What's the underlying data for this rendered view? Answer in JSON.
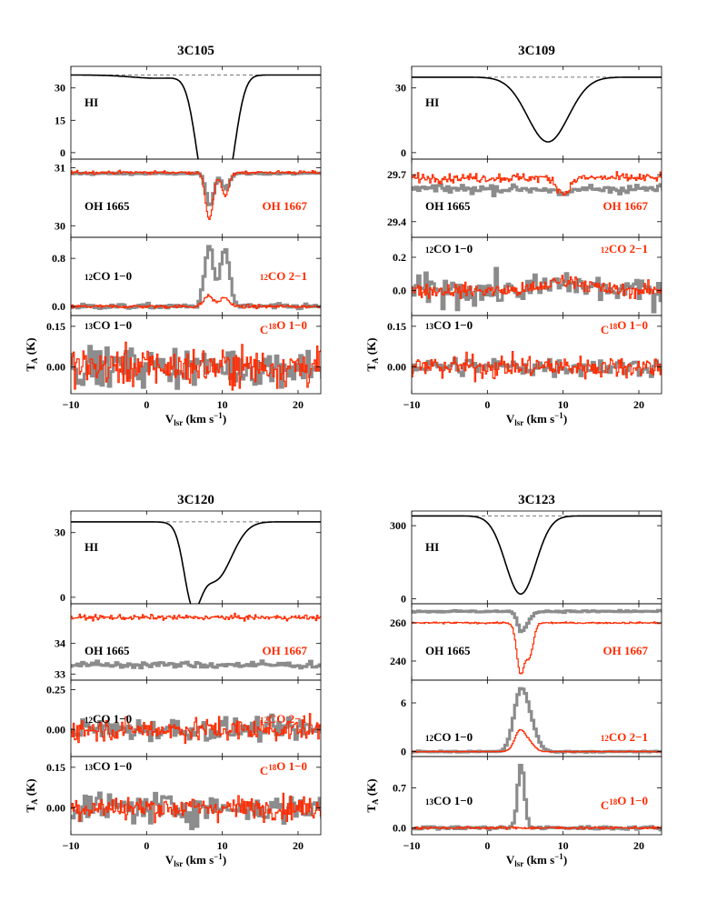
{
  "colors": {
    "black": "#000000",
    "gray": "#8c8c8c",
    "red": "#ff2a00",
    "dash": "#777777"
  },
  "labels": {
    "hi": "HI",
    "oh1665": "OH 1665",
    "oh1667": "OH 1667",
    "co12_10": [
      "12",
      "CO 1−0"
    ],
    "co12_21": [
      "12",
      "CO 2−1"
    ],
    "co13_10": [
      "13",
      "CO 1−0"
    ],
    "c18o_10": [
      "C",
      "18",
      "O 1−0"
    ],
    "ylabel": [
      "T",
      "A",
      " (K)"
    ],
    "xlabel": [
      "V",
      "lsr",
      " (km s",
      "−1",
      ")"
    ]
  },
  "chart_data": [
    {
      "title": "3C105",
      "type": "line",
      "xlim": [
        -10,
        23
      ],
      "xticks": [
        "−10",
        "0",
        "10",
        "20"
      ],
      "panels": [
        {
          "name": "HI",
          "ylim": [
            -3,
            40
          ],
          "yticks": [
            "0",
            "15",
            "30"
          ],
          "ytick_values": [
            0,
            15,
            30
          ],
          "continuum": 36,
          "profiles": [
            {
              "series": "HI",
              "kind": "abs",
              "components": [
                [
                  7.6,
                  1.3,
                  34
                ],
                [
                  10.6,
                  1.3,
                  34
                ],
                [
                  9.1,
                  1.6,
                  28
                ],
                [
                  1.5,
                  3.5,
                  1.5
                ]
              ]
            }
          ]
        },
        {
          "name": "OH",
          "ylim": [
            29.8,
            31.15
          ],
          "yticks": [
            "30",
            "31"
          ],
          "ytick_values": [
            30,
            31
          ],
          "profiles": [
            {
              "series": "OH 1665",
              "base": 30.9,
              "noise": 0.012,
              "comps": [
                [
                  8.2,
                  0.5,
                  -0.55
                ],
                [
                  10.3,
                  0.5,
                  -0.25
                ]
              ]
            },
            {
              "series": "OH 1667",
              "base": 30.92,
              "noise": 0.02,
              "comps": [
                [
                  8.2,
                  0.5,
                  -0.8
                ],
                [
                  10.3,
                  0.5,
                  -0.4
                ]
              ]
            }
          ]
        },
        {
          "name": "CO12",
          "ylim": [
            -0.15,
            1.15
          ],
          "yticks": [
            "0.0",
            "0.8"
          ],
          "ytick_values": [
            0,
            0.8
          ],
          "profiles": [
            {
              "series": "12CO 1-0",
              "base": 0,
              "noise": 0.03,
              "comps": [
                [
                  8.1,
                  0.6,
                  1.0
                ],
                [
                  10.2,
                  0.6,
                  0.95
                ]
              ]
            },
            {
              "series": "12CO 2-1",
              "base": 0,
              "noise": 0.02,
              "comps": [
                [
                  8.1,
                  0.6,
                  0.18
                ],
                [
                  10.2,
                  0.6,
                  0.15
                ]
              ]
            }
          ]
        },
        {
          "name": "CO13",
          "ylim": [
            -0.1,
            0.19
          ],
          "yticks": [
            "0.00",
            "0.15"
          ],
          "ytick_values": [
            0,
            0.15
          ],
          "profiles": [
            {
              "series": "13CO 1-0",
              "base": 0,
              "noise": 0.05,
              "comps": []
            },
            {
              "series": "C18O 1-0",
              "base": 0,
              "noise": 0.05,
              "comps": []
            }
          ]
        }
      ]
    },
    {
      "title": "3C109",
      "type": "line",
      "xlim": [
        -10,
        23
      ],
      "xticks": [
        "−10",
        "0",
        "10",
        "20"
      ],
      "panels": [
        {
          "name": "HI",
          "ylim": [
            -3,
            40
          ],
          "yticks": [
            "0",
            "30"
          ],
          "ytick_values": [
            0,
            30
          ],
          "continuum": 35,
          "profiles": [
            {
              "series": "HI",
              "kind": "abs",
              "components": [
                [
                  8.0,
                  2.7,
                  30
                ]
              ]
            }
          ]
        },
        {
          "name": "OH",
          "ylim": [
            29.3,
            29.8
          ],
          "yticks": [
            "29.4",
            "29.7"
          ],
          "ytick_values": [
            29.4,
            29.7
          ],
          "profiles": [
            {
              "series": "OH 1665",
              "base": 29.61,
              "noise": 0.02,
              "comps": [
                [
                  10.0,
                  0.8,
                  -0.05
                ]
              ]
            },
            {
              "series": "OH 1667",
              "base": 29.68,
              "noise": 0.02,
              "comps": [
                [
                  10.0,
                  0.8,
                  -0.1
                ]
              ]
            }
          ]
        },
        {
          "name": "CO12",
          "ylim": [
            -0.15,
            0.32
          ],
          "yticks": [
            "0.0",
            "0.2"
          ],
          "ytick_values": [
            0,
            0.2
          ],
          "profiles": [
            {
              "series": "12CO 1-0",
              "base": 0,
              "noise": 0.06,
              "comps": [
                [
                  10.5,
                  2.5,
                  0.04
                ]
              ]
            },
            {
              "series": "12CO 2-1",
              "base": 0,
              "noise": 0.03,
              "comps": [
                [
                  10.5,
                  2.5,
                  0.06
                ]
              ]
            }
          ]
        },
        {
          "name": "CO13",
          "ylim": [
            -0.1,
            0.19
          ],
          "yticks": [
            "0.00",
            "0.15"
          ],
          "ytick_values": [
            0,
            0.15
          ],
          "profiles": [
            {
              "series": "13CO 1-0",
              "base": 0,
              "noise": 0.025,
              "comps": []
            },
            {
              "series": "C18O 1-0",
              "base": 0,
              "noise": 0.03,
              "comps": []
            }
          ]
        }
      ]
    },
    {
      "title": "3C120",
      "type": "line",
      "xlim": [
        -10,
        23
      ],
      "xticks": [
        "−10",
        "0",
        "10",
        "20"
      ],
      "panels": [
        {
          "name": "HI",
          "ylim": [
            -3,
            40
          ],
          "yticks": [
            "0",
            "30"
          ],
          "ytick_values": [
            0,
            30
          ],
          "continuum": 35,
          "profiles": [
            {
              "series": "HI",
              "kind": "abs",
              "components": [
                [
                  6.0,
                  1.1,
                  29
                ],
                [
                  9.0,
                  2.2,
                  27
                ]
              ]
            }
          ]
        },
        {
          "name": "OH",
          "ylim": [
            32.8,
            35.3
          ],
          "yticks": [
            "33",
            "34"
          ],
          "ytick_values": [
            33,
            34
          ],
          "profiles": [
            {
              "series": "OH 1665",
              "base": 33.3,
              "noise": 0.08,
              "comps": []
            },
            {
              "series": "OH 1667",
              "base": 34.85,
              "noise": 0.06,
              "comps": []
            }
          ]
        },
        {
          "name": "CO12",
          "ylim": [
            -0.17,
            0.31
          ],
          "yticks": [
            "0.00",
            "0.25"
          ],
          "ytick_values": [
            0,
            0.25
          ],
          "profiles": [
            {
              "series": "12CO 1-0",
              "base": 0,
              "noise": 0.05,
              "comps": []
            },
            {
              "series": "12CO 2-1",
              "base": 0,
              "noise": 0.05,
              "comps": []
            }
          ]
        },
        {
          "name": "CO13",
          "ylim": [
            -0.1,
            0.19
          ],
          "yticks": [
            "0.00",
            "0.15"
          ],
          "ytick_values": [
            0,
            0.15
          ],
          "profiles": [
            {
              "series": "13CO 1-0",
              "base": 0,
              "noise": 0.04,
              "comps": []
            },
            {
              "series": "C18O 1-0",
              "base": 0,
              "noise": 0.03,
              "comps": []
            }
          ]
        }
      ]
    },
    {
      "title": "3C123",
      "type": "line",
      "xlim": [
        -10,
        23
      ],
      "xticks": [
        "−10",
        "0",
        "10",
        "20"
      ],
      "panels": [
        {
          "name": "HI",
          "ylim": [
            -20,
            360
          ],
          "yticks": [
            "0",
            "300"
          ],
          "ytick_values": [
            0,
            300
          ],
          "continuum": 340,
          "profiles": [
            {
              "series": "HI",
              "kind": "abs",
              "components": [
                [
                  4.4,
                  2.0,
                  320
                ]
              ]
            }
          ]
        },
        {
          "name": "OH",
          "ylim": [
            230,
            270
          ],
          "yticks": [
            "240",
            "260"
          ],
          "ytick_values": [
            240,
            260
          ],
          "profiles": [
            {
              "series": "OH 1665",
              "base": 266,
              "noise": 0.3,
              "comps": [
                [
                  4.3,
                  0.5,
                  -10
                ],
                [
                  5.3,
                  0.5,
                  -4
                ]
              ]
            },
            {
              "series": "OH 1667",
              "base": 260,
              "noise": 0.3,
              "comps": [
                [
                  4.3,
                  0.5,
                  -26
                ],
                [
                  5.5,
                  0.5,
                  -17
                ]
              ]
            }
          ]
        },
        {
          "name": "CO12",
          "ylim": [
            -0.6,
            8.8
          ],
          "yticks": [
            "0",
            "6"
          ],
          "ytick_values": [
            0,
            6
          ],
          "profiles": [
            {
              "series": "12CO 1-0",
              "base": 0,
              "noise": 0.05,
              "comps": [
                [
                  4.2,
                  0.9,
                  7
                ],
                [
                  5.6,
                  0.9,
                  2.5
                ]
              ]
            },
            {
              "series": "12CO 2-1",
              "base": 0,
              "noise": 0.04,
              "comps": [
                [
                  4.2,
                  0.7,
                  2.5
                ],
                [
                  5.5,
                  0.7,
                  1
                ]
              ]
            }
          ]
        },
        {
          "name": "CO13",
          "ylim": [
            -0.12,
            1.25
          ],
          "yticks": [
            "0.0",
            "0.7"
          ],
          "ytick_values": [
            0,
            0.7
          ],
          "profiles": [
            {
              "series": "13CO 1-0",
              "base": 0,
              "noise": 0.02,
              "comps": [
                [
                  4.3,
                  0.45,
                  1.1
                ]
              ]
            },
            {
              "series": "C18O 1-0",
              "base": 0,
              "noise": 0.015,
              "comps": []
            }
          ]
        }
      ]
    }
  ]
}
